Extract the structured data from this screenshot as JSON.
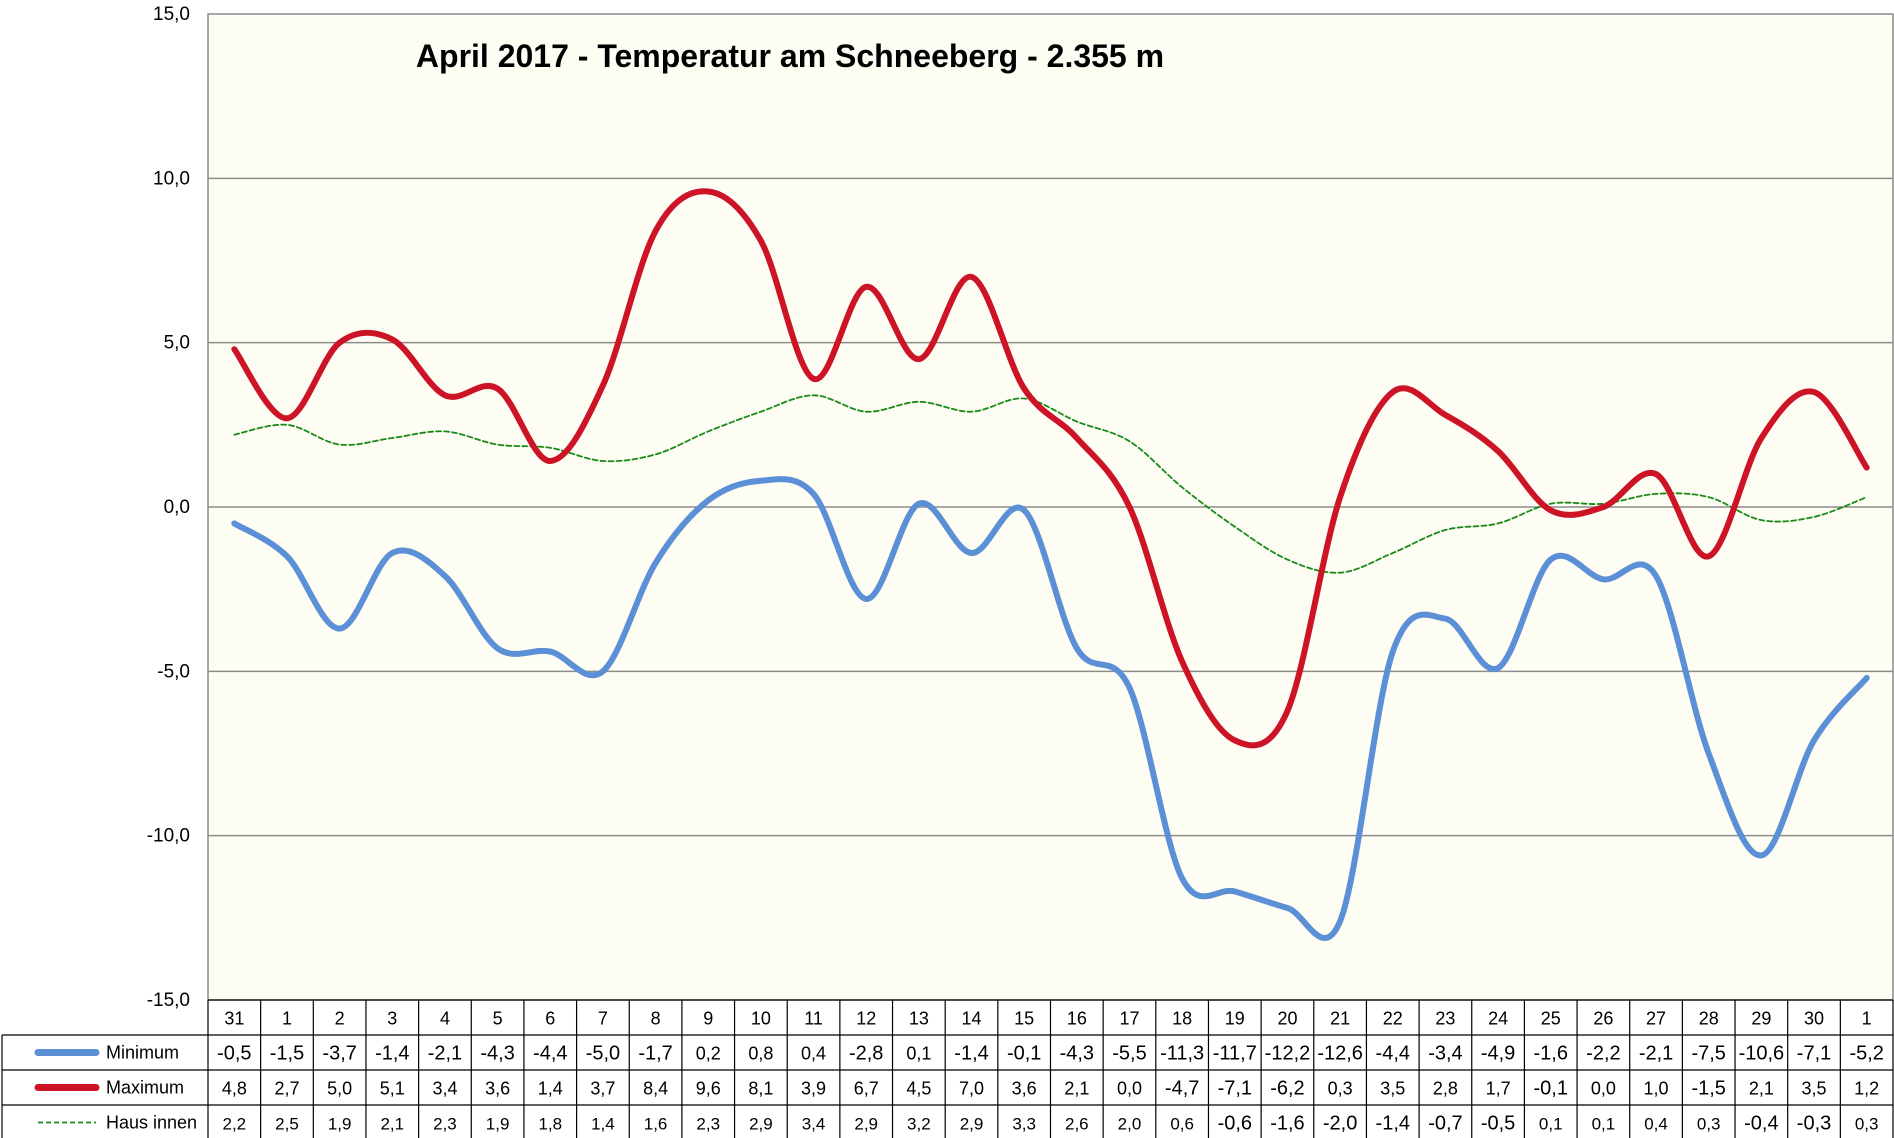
{
  "chart_data": {
    "type": "line",
    "title": "April 2017 - Temperatur am Schneeberg - 2.355 m",
    "xlabel": "",
    "ylabel": "",
    "ylim": [
      -15,
      15
    ],
    "yticks": [
      "15,0",
      "10,0",
      "5,0",
      "0,0",
      "-5,0",
      "-10,0",
      "-15,0"
    ],
    "ytick_values": [
      15,
      10,
      5,
      0,
      -5,
      -10,
      -15
    ],
    "grid": true,
    "legend": "table-left",
    "categories": [
      "31",
      "1",
      "2",
      "3",
      "4",
      "5",
      "6",
      "7",
      "8",
      "9",
      "10",
      "11",
      "12",
      "13",
      "14",
      "15",
      "16",
      "17",
      "18",
      "19",
      "20",
      "21",
      "22",
      "23",
      "24",
      "25",
      "26",
      "27",
      "28",
      "29",
      "30",
      "1"
    ],
    "series": [
      {
        "name": "Minimum",
        "color": "#5b8fd6",
        "style": "solid",
        "values": [
          -0.5,
          -1.5,
          -3.7,
          -1.4,
          -2.1,
          -4.3,
          -4.4,
          -5.0,
          -1.7,
          0.2,
          0.8,
          0.4,
          -2.8,
          0.1,
          -1.4,
          -0.1,
          -4.3,
          -5.5,
          -11.3,
          -11.7,
          -12.2,
          -12.6,
          -4.4,
          -3.4,
          -4.9,
          -1.6,
          -2.2,
          -2.1,
          -7.5,
          -10.6,
          -7.1,
          -5.2
        ],
        "labels": [
          "-0,5",
          "-1,5",
          "-3,7",
          "-1,4",
          "-2,1",
          "-4,3",
          "-4,4",
          "-5,0",
          "-1,7",
          "0,2",
          "0,8",
          "0,4",
          "-2,8",
          "0,1",
          "-1,4",
          "-0,1",
          "-4,3",
          "-5,5",
          "-11,3",
          "-11,7",
          "-12,2",
          "-12,6",
          "-4,4",
          "-3,4",
          "-4,9",
          "-1,6",
          "-2,2",
          "-2,1",
          "-7,5",
          "-10,6",
          "-7,1",
          "-5,2"
        ]
      },
      {
        "name": "Maximum",
        "color": "#cc1426",
        "style": "solid",
        "values": [
          4.8,
          2.7,
          5.0,
          5.1,
          3.4,
          3.6,
          1.4,
          3.7,
          8.4,
          9.6,
          8.1,
          3.9,
          6.7,
          4.5,
          7.0,
          3.6,
          2.1,
          0.0,
          -4.7,
          -7.1,
          -6.2,
          0.3,
          3.5,
          2.8,
          1.7,
          -0.1,
          0.0,
          1.0,
          -1.5,
          2.1,
          3.5,
          1.2
        ],
        "labels": [
          "4,8",
          "2,7",
          "5,0",
          "5,1",
          "3,4",
          "3,6",
          "1,4",
          "3,7",
          "8,4",
          "9,6",
          "8,1",
          "3,9",
          "6,7",
          "4,5",
          "7,0",
          "3,6",
          "2,1",
          "0,0",
          "-4,7",
          "-7,1",
          "-6,2",
          "0,3",
          "3,5",
          "2,8",
          "1,7",
          "-0,1",
          "0,0",
          "1,0",
          "-1,5",
          "2,1",
          "3,5",
          "1,2"
        ]
      },
      {
        "name": "Haus innen",
        "color": "#1a8a1a",
        "style": "dashed",
        "values": [
          2.2,
          2.5,
          1.9,
          2.1,
          2.3,
          1.9,
          1.8,
          1.4,
          1.6,
          2.3,
          2.9,
          3.4,
          2.9,
          3.2,
          2.9,
          3.3,
          2.6,
          2.0,
          0.6,
          -0.6,
          -1.6,
          -2.0,
          -1.4,
          -0.7,
          -0.5,
          0.1,
          0.1,
          0.4,
          0.3,
          -0.4,
          -0.3,
          0.3
        ],
        "labels": [
          "2,2",
          "2,5",
          "1,9",
          "2,1",
          "2,3",
          "1,9",
          "1,8",
          "1,4",
          "1,6",
          "2,3",
          "2,9",
          "3,4",
          "2,9",
          "3,2",
          "2,9",
          "3,3",
          "2,6",
          "2,0",
          "0,6",
          "-0,6",
          "-1,6",
          "-2,0",
          "-1,4",
          "-0,7",
          "-0,5",
          "0,1",
          "0,1",
          "0,4",
          "0,3",
          "-0,4",
          "-0,3",
          "0,3"
        ]
      }
    ]
  }
}
